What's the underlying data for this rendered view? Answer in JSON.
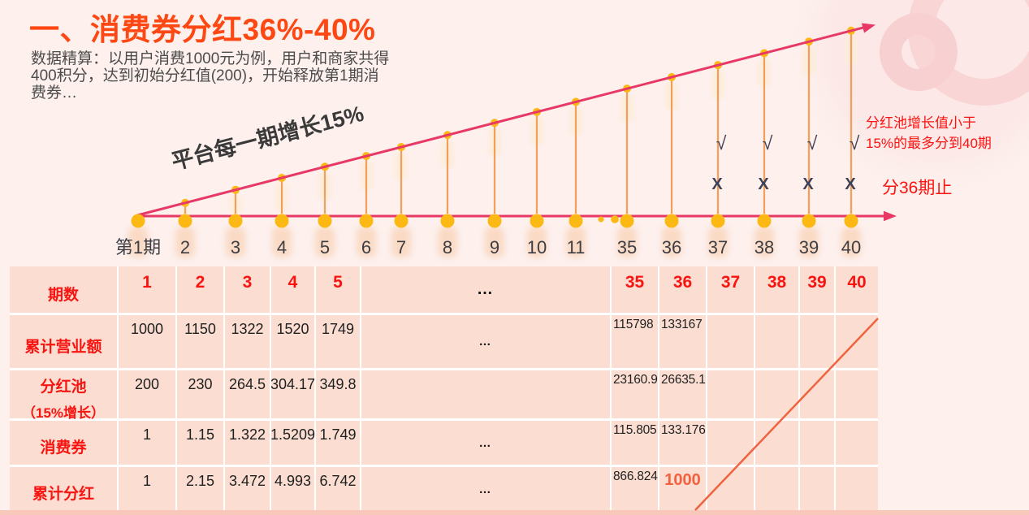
{
  "slide": {
    "title": "一、消费券分红36%-40%",
    "subtitle_lines": [
      "数据精算：以用户消费1000元为例，用户和商家共得",
      "400积分，达到初始分红值(200)，开始释放第1期消",
      "费券…"
    ]
  },
  "annotations": {
    "right_note_line1": "分红池增长值小于",
    "right_note_line2": "15%的最多分到40期",
    "stop_note": "分36期止",
    "check_mark": "√",
    "cross_mark": "X"
  },
  "chart_data": {
    "type": "line",
    "title": "消费券分红36%-40%",
    "growth_label": "平台每一期增长15%",
    "growth_rate_per_period": "15%",
    "x_categories": [
      "第1期",
      "2",
      "3",
      "4",
      "5",
      "6",
      "7",
      "8",
      "9",
      "10",
      "11",
      "35",
      "36",
      "37",
      "38",
      "39",
      "40"
    ],
    "ellipsis_between": [
      "11",
      "35"
    ],
    "check_periods": [
      "37",
      "38",
      "39",
      "40"
    ],
    "cross_periods": [
      "37",
      "38",
      "39",
      "40"
    ],
    "max_period_shown": 40,
    "table": {
      "corner_label": "期数",
      "columns": [
        "1",
        "2",
        "3",
        "4",
        "5",
        "…",
        "35",
        "36",
        "37",
        "38",
        "39",
        "40"
      ],
      "rows": [
        {
          "label": "累计营业额",
          "values": [
            "1000",
            "1150",
            "1322",
            "1520",
            "1749",
            "…",
            "115798",
            "133167",
            "",
            "",
            "",
            ""
          ]
        },
        {
          "label": "分红池",
          "label2": "（15%增长）",
          "values": [
            "200",
            "230",
            "264.5",
            "304.17",
            "349.8",
            "",
            "23160.9",
            "26635.1",
            "",
            "",
            "",
            ""
          ]
        },
        {
          "label": "消费券",
          "values": [
            "1",
            "1.15",
            "1.322",
            "1.5209",
            "1.749",
            "…",
            "115.805",
            "133.176",
            "",
            "",
            "",
            ""
          ]
        },
        {
          "label": "累计分红",
          "values": [
            "1",
            "2.15",
            "3.472",
            "4.993",
            "6.742",
            "…",
            "866.824",
            "1000",
            "",
            "",
            "",
            ""
          ]
        }
      ],
      "highlight_row": "累计分红",
      "highlight_column": "36",
      "highlight_value": "1000"
    }
  },
  "colors": {
    "background": "#fdf0ed",
    "title_red": "#fd4813",
    "axis_pink": "#e73866",
    "stem_orange": "#f39a52",
    "dot_yellow": "#fcb813",
    "note_red": "#fb1310",
    "table_cell": "#fbddd1",
    "table_label_red": "#f81511",
    "highlight_orange": "#f4603d",
    "diagonal_orange": "#ef6340",
    "bottom_strip": "#f8c8ba",
    "mark_dark": "#3e4156",
    "axis_label_gray": "#3d3d44"
  }
}
